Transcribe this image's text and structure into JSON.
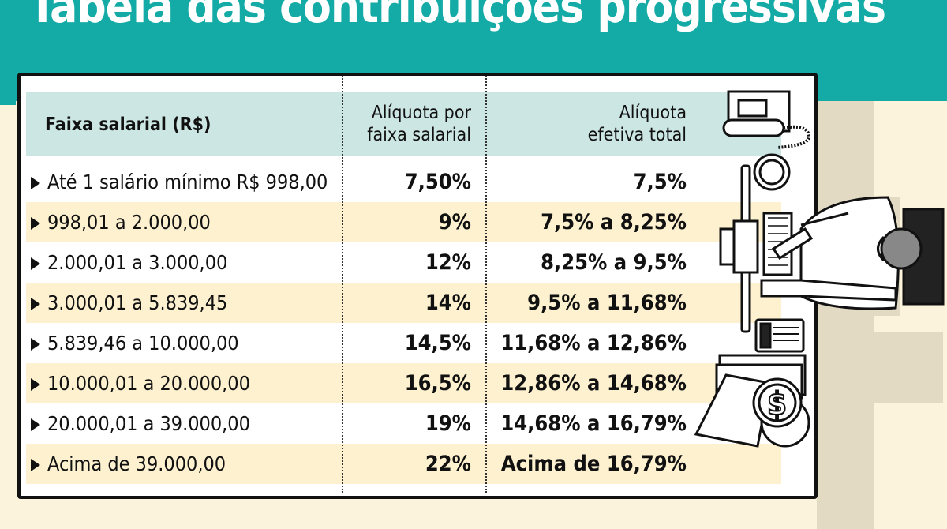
{
  "title": "Tabela das contribuições progressivas",
  "table": {
    "headers": [
      "Faixa salarial (R$)",
      "Alíquota por faixa salarial",
      "Alíquota efetiva total"
    ],
    "header_lines": {
      "col2": [
        "Alíquota por",
        "faixa salarial"
      ],
      "col3": [
        "Alíquota",
        "efetiva total"
      ]
    },
    "rows": [
      [
        "Até 1 salário mínimo R$ 998,00",
        "7,50%",
        "7,5%"
      ],
      [
        "998,01 a 2.000,00",
        "9%",
        "7,5% a 8,25%"
      ],
      [
        "2.000,01 a 3.000,00",
        "12%",
        "8,25% a 9,5%"
      ],
      [
        "3.000,01 a 5.839,45",
        "14%",
        "9,5% a 11,68%"
      ],
      [
        "5.839,46 a 10.000,00",
        "14,5%",
        "11,68% a 12,86%"
      ],
      [
        "10.000,01 a 20.000,00",
        "16,5%",
        "12,86% a 14,68%"
      ],
      [
        "20.000,01 a 39.000,00",
        "19%",
        "14,68% a 16,79%"
      ],
      [
        "Acima de 39.000,00",
        "22%",
        "Acima de 16,79%"
      ]
    ]
  },
  "colors": {
    "header_band": "#14aba6",
    "table_header": "#cbe6e3",
    "alt_row": "#fdf1cf",
    "background": "#fbf3dc"
  },
  "icons": [
    "telephone-icon",
    "coffee-cup-icon",
    "monitor-icon",
    "keyboard-icon",
    "calculator-icon",
    "documents-icon",
    "coin-icon",
    "person-at-desk-illustration"
  ]
}
